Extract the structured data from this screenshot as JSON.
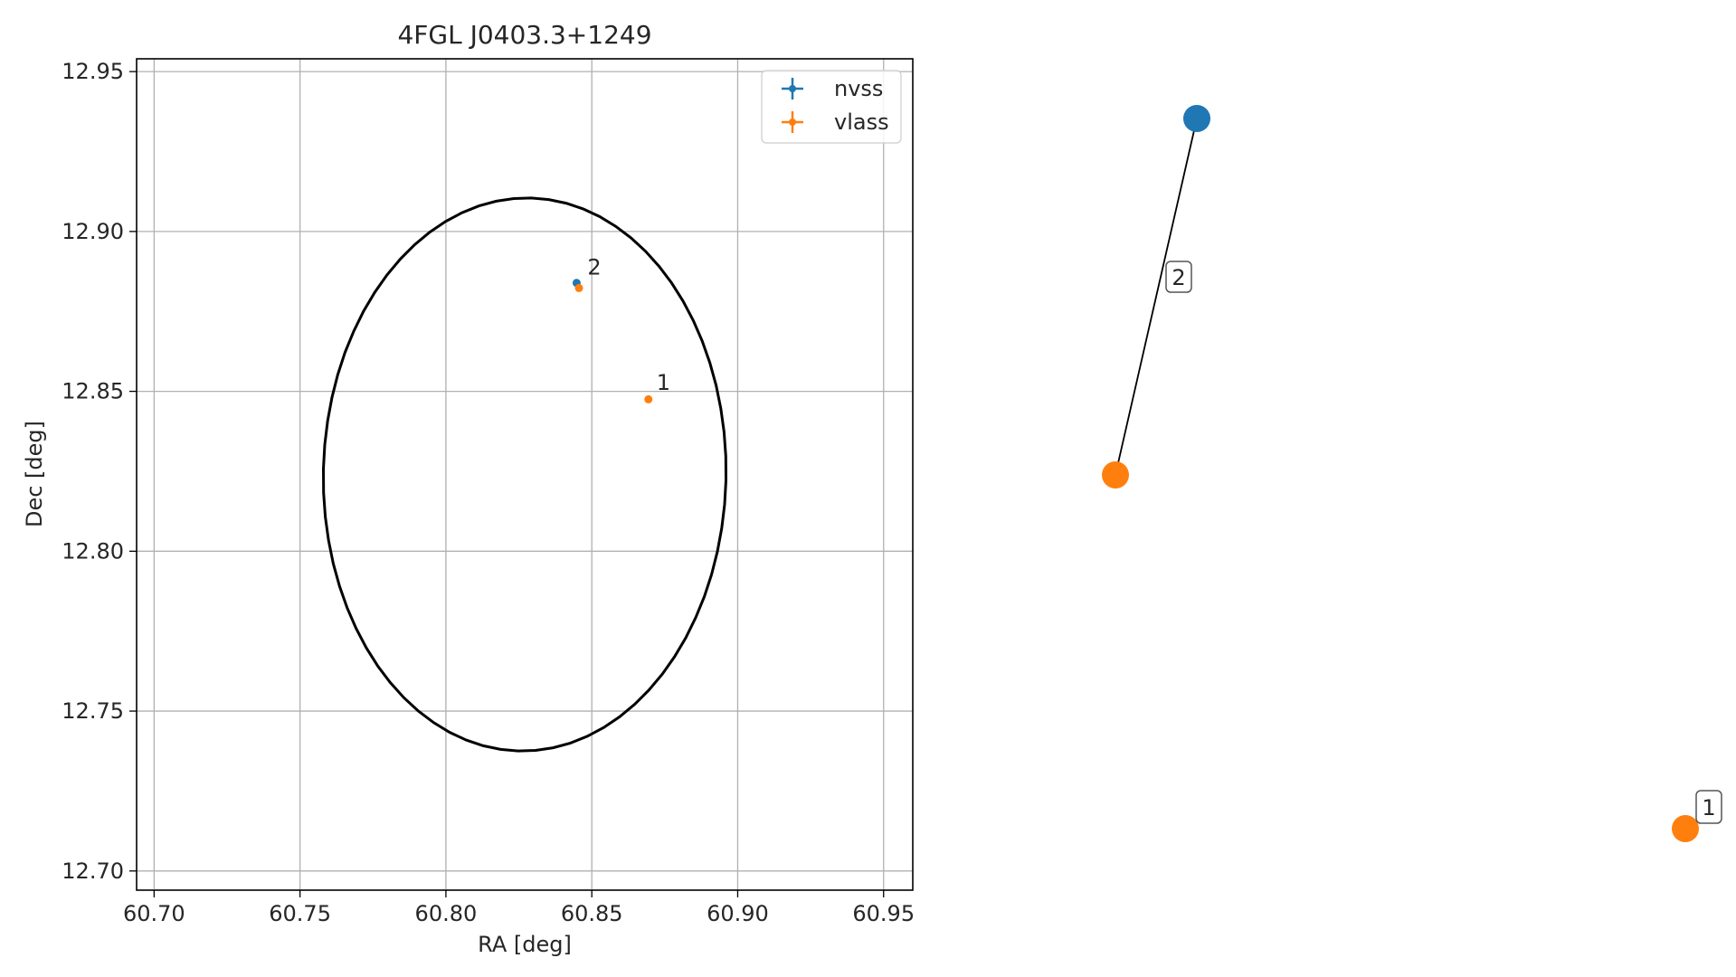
{
  "chart_data": [
    {
      "type": "scatter",
      "title": "4FGL J0403.3+1249",
      "xlabel": "RA [deg]",
      "ylabel": "Dec [deg]",
      "xlim": [
        60.694,
        60.96
      ],
      "ylim": [
        12.694,
        12.954
      ],
      "xticks": [
        60.7,
        60.75,
        60.8,
        60.85,
        60.9,
        60.95
      ],
      "xtick_labels": [
        "60.70",
        "60.75",
        "60.80",
        "60.85",
        "60.90",
        "60.95"
      ],
      "yticks": [
        12.7,
        12.75,
        12.8,
        12.85,
        12.9,
        12.95
      ],
      "ytick_labels": [
        "12.70",
        "12.75",
        "12.80",
        "12.85",
        "12.90",
        "12.95"
      ],
      "grid": true,
      "legend": "top-right",
      "series": [
        {
          "name": "nvss",
          "color": "#1f77b4",
          "points": [
            {
              "x": 60.8448,
              "y": 12.8839
            }
          ]
        },
        {
          "name": "vlass",
          "color": "#ff7f0e",
          "points": [
            {
              "x": 60.8456,
              "y": 12.8823
            },
            {
              "x": 60.8694,
              "y": 12.8475
            }
          ]
        }
      ],
      "annotations": [
        {
          "text": "2",
          "x": 60.8485,
          "y": 12.8865
        },
        {
          "text": "1",
          "x": 60.8722,
          "y": 12.8505
        }
      ],
      "ellipse": {
        "cx": 60.827,
        "cy": 12.824,
        "rx": 0.069,
        "ry": 0.0865,
        "angle_deg": -1.5,
        "color": "#000000"
      }
    },
    {
      "type": "graph",
      "nodes": [
        {
          "id": "nvss-2",
          "color": "#1f77b4"
        },
        {
          "id": "vlass-2",
          "color": "#ff7f0e"
        },
        {
          "id": "vlass-1",
          "color": "#ff7f0e"
        }
      ],
      "edges": [
        {
          "from": "nvss-2",
          "to": "vlass-2",
          "label": "2"
        }
      ],
      "node_labels": [
        {
          "node": "vlass-1",
          "text": "1"
        }
      ]
    }
  ]
}
